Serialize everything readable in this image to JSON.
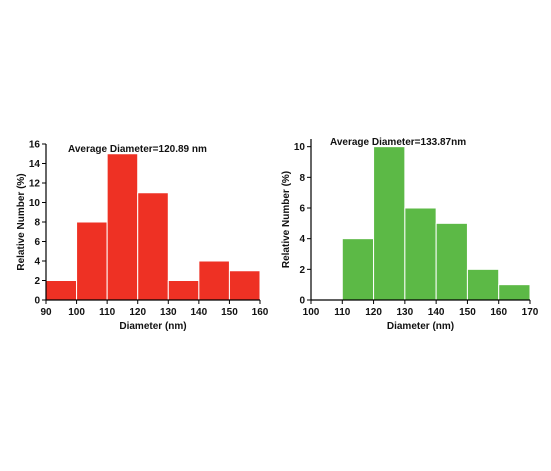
{
  "chart_data": [
    {
      "type": "bar",
      "title": "",
      "annotation": "Average Diameter=120.89 nm",
      "xlabel": "Diameter (nm)",
      "ylabel": "Relative Number (%)",
      "bin_edges": [
        90,
        100,
        110,
        120,
        130,
        140,
        150,
        160
      ],
      "values": [
        2,
        8,
        15,
        11,
        2,
        4,
        3
      ],
      "xlim": [
        90,
        160
      ],
      "ylim": [
        0,
        16
      ],
      "xticks": [
        90,
        100,
        110,
        120,
        130,
        140,
        150,
        160
      ],
      "yticks": [
        0,
        2,
        4,
        6,
        8,
        10,
        12,
        14,
        16
      ],
      "bar_color": "#ee3124",
      "grid": false
    },
    {
      "type": "bar",
      "title": "",
      "annotation": "Average Diameter=133.87nm",
      "xlabel": "Diameter (nm)",
      "ylabel": "Relative Number (%)",
      "bin_edges": [
        110,
        120,
        130,
        140,
        150,
        160,
        170
      ],
      "values": [
        4,
        10,
        6,
        5,
        2,
        1
      ],
      "xlim": [
        100,
        170
      ],
      "ylim": [
        0,
        10.5
      ],
      "xticks": [
        100,
        110,
        120,
        130,
        140,
        150,
        160,
        170
      ],
      "yticks": [
        0,
        2,
        4,
        6,
        8,
        10
      ],
      "bar_color": "#5cb946",
      "grid": false
    }
  ]
}
